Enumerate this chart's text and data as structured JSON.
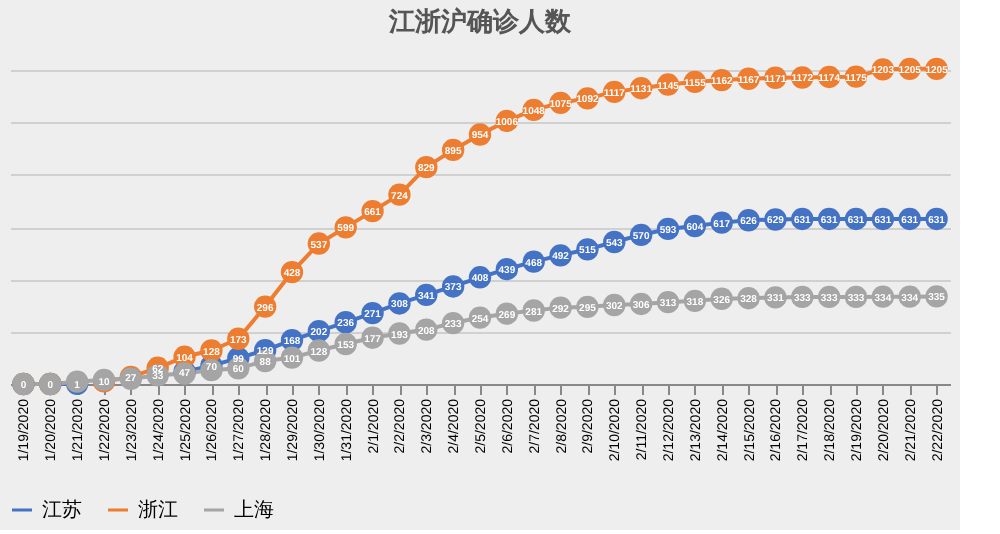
{
  "chart_data": {
    "type": "line",
    "title": "江浙沪确诊人数",
    "categories": [
      "1/19/2020",
      "1/20/2020",
      "1/21/2020",
      "1/22/2020",
      "1/23/2020",
      "1/24/2020",
      "1/25/2020",
      "1/26/2020",
      "1/27/2020",
      "1/28/2020",
      "1/29/2020",
      "1/30/2020",
      "1/31/2020",
      "2/1/2020",
      "2/2/2020",
      "2/3/2020",
      "2/4/2020",
      "2/5/2020",
      "2/6/2020",
      "2/7/2020",
      "2/8/2020",
      "2/9/2020",
      "2/10/2020",
      "2/11/2020",
      "2/12/2020",
      "2/13/2020",
      "2/14/2020",
      "2/15/2020",
      "2/16/2020",
      "2/17/2020",
      "2/18/2020",
      "2/19/2020",
      "2/20/2020",
      "2/21/2020",
      "2/22/2020"
    ],
    "series": [
      {
        "name": "江苏",
        "color": "#4472c4",
        "values": [
          0,
          0,
          1,
          null,
          null,
          null,
          47,
          70,
          99,
          129,
          168,
          202,
          236,
          271,
          308,
          341,
          373,
          408,
          439,
          468,
          492,
          515,
          543,
          570,
          593,
          604,
          617,
          626,
          629,
          631,
          631,
          631,
          631,
          631,
          631
        ],
        "value_labels": [
          null,
          null,
          "1",
          null,
          null,
          null,
          "47",
          "70",
          "99",
          "129",
          "168",
          "202",
          "236",
          "271",
          "308",
          "341",
          "373",
          "408",
          "439",
          "468",
          "492",
          "515",
          "543",
          "570",
          "593",
          "604",
          "617",
          "626",
          "629",
          "631",
          "631",
          "631",
          "631",
          "631",
          "631"
        ]
      },
      {
        "name": "浙江",
        "color": "#ed7d31",
        "values": [
          0,
          0,
          null,
          10,
          27,
          62,
          104,
          128,
          173,
          296,
          428,
          537,
          599,
          661,
          724,
          829,
          895,
          954,
          1006,
          1048,
          1075,
          1092,
          1117,
          1131,
          1145,
          1155,
          1162,
          1167,
          1171,
          1172,
          1174,
          1175,
          1203,
          1205,
          1205
        ],
        "value_labels": [
          null,
          null,
          null,
          "10",
          "27",
          "62",
          "104",
          "128",
          "173",
          "296",
          "428",
          "537",
          "599",
          "661",
          "724",
          "829",
          "895",
          "954",
          "1006",
          "1048",
          "1075",
          "1092",
          "1117",
          "1131",
          "1145",
          "1155",
          "1162",
          "1167",
          "1171",
          "1172",
          "1174",
          "1175",
          "1203",
          "1205",
          "1205"
        ]
      },
      {
        "name": "上海",
        "color": "#a5a5a5",
        "values": [
          0,
          0,
          9,
          16,
          20,
          33,
          40,
          53,
          60,
          88,
          101,
          128,
          153,
          177,
          193,
          208,
          233,
          254,
          269,
          281,
          292,
          295,
          302,
          306,
          313,
          318,
          326,
          328,
          331,
          333,
          333,
          333,
          334,
          334,
          335
        ],
        "value_labels": [
          "0",
          "0",
          null,
          null,
          null,
          "33",
          null,
          null,
          "60",
          "88",
          "101",
          "128",
          "153",
          "177",
          "193",
          "208",
          "233",
          "254",
          "269",
          "281",
          "292",
          "295",
          "302",
          "306",
          "313",
          "318",
          "326",
          "328",
          "331",
          "333",
          "333",
          "333",
          "334",
          "334",
          "335"
        ]
      }
    ],
    "tick_labels": "x",
    "grid": "y",
    "legend": "bottom",
    "marker": "circle",
    "line_style": "solid"
  }
}
